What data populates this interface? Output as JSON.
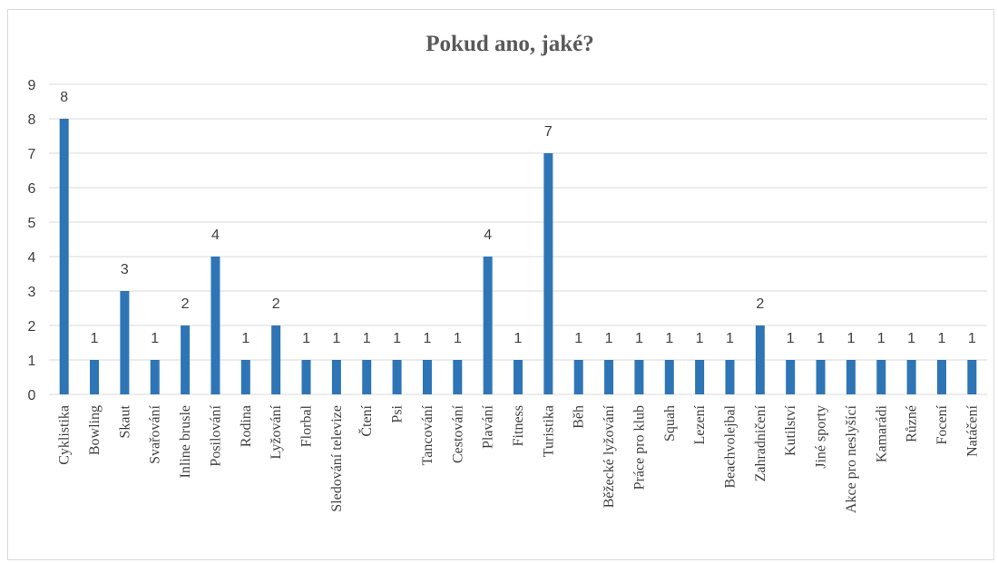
{
  "chart_data": {
    "type": "bar",
    "title": "Pokud ano, jaké?",
    "categories": [
      "Cyklistika",
      "Bowling",
      "Skaut",
      "Svařování",
      "Inline brusle",
      "Posilování",
      "Rodina",
      "Lyžování",
      "Florbal",
      "Sledování televize",
      "Čtení",
      "Psi",
      "Tancování",
      "Cestování",
      "Plavání",
      "Fitness",
      "Turistika",
      "Běh",
      "Běžecké lyžování",
      "Práce pro klub",
      "Squah",
      "Lezení",
      "Beachvolejbal",
      "Zahradničení",
      "Kutilství",
      "Jiné sporty",
      "Akce pro neslyšící",
      "Kamarádi",
      "Různé",
      "Focení",
      "Natáčení"
    ],
    "values": [
      8,
      1,
      3,
      1,
      2,
      4,
      1,
      2,
      1,
      1,
      1,
      1,
      1,
      1,
      4,
      1,
      7,
      1,
      1,
      1,
      1,
      1,
      1,
      2,
      1,
      1,
      1,
      1,
      1,
      1,
      1
    ],
    "ylim": [
      0,
      9
    ],
    "yticks": [
      "0",
      "1",
      "2",
      "3",
      "4",
      "5",
      "6",
      "7",
      "8",
      "9"
    ],
    "grid": true,
    "data_labels": true,
    "bar_color": "#2E75B6",
    "grid_color": "#D9D9D9"
  }
}
